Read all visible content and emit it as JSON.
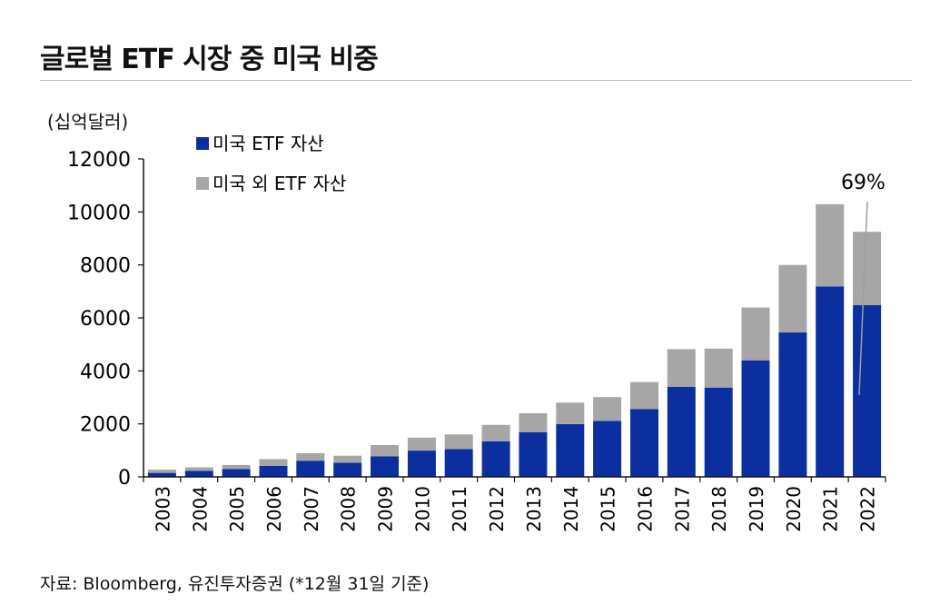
{
  "title": "글로벌 ETF 시장 중 미국 비중",
  "unit_label": "(십억달러)",
  "source": "자료: Bloomberg, 유진투자증권 (*12월 31일 기준)",
  "annotation": "69%",
  "colors": {
    "us": "#0b2f9f",
    "non_us": "#a6a6a6",
    "axis": "#111111"
  },
  "chart_data": {
    "type": "bar",
    "stacked": true,
    "categories": [
      "2003",
      "2004",
      "2005",
      "2006",
      "2007",
      "2008",
      "2009",
      "2010",
      "2011",
      "2012",
      "2013",
      "2014",
      "2015",
      "2016",
      "2017",
      "2018",
      "2019",
      "2020",
      "2021",
      "2022"
    ],
    "series": [
      {
        "name": "미국 ETF 자산",
        "values": [
          150,
          230,
          300,
          420,
          610,
          530,
          780,
          990,
          1050,
          1340,
          1680,
          1990,
          2110,
          2560,
          3400,
          3370,
          4400,
          5450,
          7190,
          6480
        ]
      },
      {
        "name": "미국 외 ETF 자산",
        "values": [
          120,
          130,
          150,
          250,
          280,
          270,
          420,
          490,
          550,
          620,
          720,
          810,
          900,
          1020,
          1420,
          1470,
          1990,
          2550,
          3100,
          2770
        ]
      }
    ],
    "ylim": [
      0,
      12000
    ],
    "yticks": [
      0,
      2000,
      4000,
      6000,
      8000,
      10000,
      12000
    ],
    "legend_position": "top-left",
    "grid": false
  }
}
